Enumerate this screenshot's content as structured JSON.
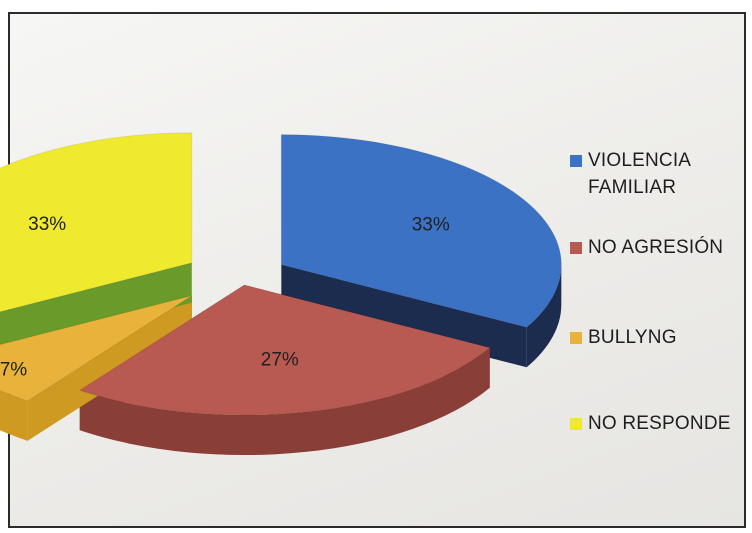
{
  "chart_data": {
    "type": "pie",
    "style": "3d-exploded",
    "title": "",
    "slices": [
      {
        "label": "VIOLENCIA FAMILIAR",
        "value": 33,
        "display": "33%",
        "color": "#3b72c4",
        "side_color": "#1c2c4f"
      },
      {
        "label": "NO AGRESIÓN",
        "value": 27,
        "display": "27%",
        "color": "#b85a52",
        "side_color": "#8a3e38"
      },
      {
        "label": "BULLYNG",
        "value": 7,
        "display": "7%",
        "color": "#e9b33b",
        "side_color": "#cf9a22"
      },
      {
        "label": "NO RESPONDE",
        "value": 33,
        "display": "33%",
        "color": "#f0ea2e",
        "side_color": "#6a9a2a"
      }
    ],
    "legend_position": "right",
    "grid": false
  }
}
